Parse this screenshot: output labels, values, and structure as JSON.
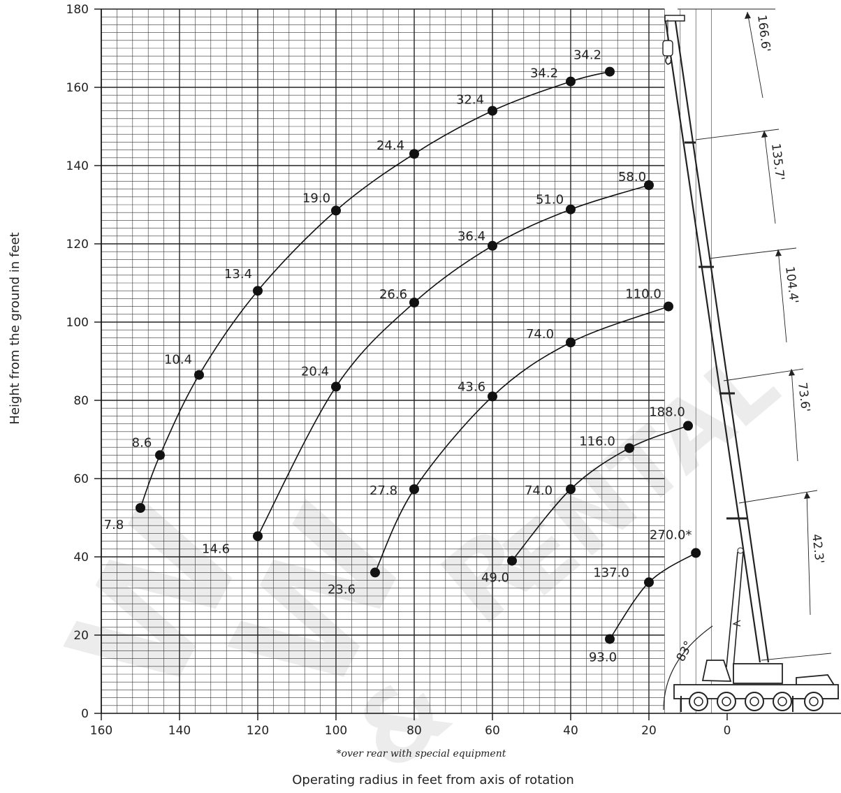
{
  "chart_data": {
    "type": "line",
    "xlabel": "Operating radius in feet from axis of rotation",
    "ylabel": "Height from the ground in feet",
    "xlim": [
      160,
      0
    ],
    "ylim": [
      0,
      180
    ],
    "x_ticks": [
      160,
      140,
      120,
      100,
      80,
      60,
      40,
      20,
      0
    ],
    "y_ticks": [
      0,
      20,
      40,
      60,
      80,
      100,
      120,
      140,
      160,
      180
    ],
    "grid": true,
    "footnote": "*over rear with special equipment",
    "boom_lengths": [
      "166.6'",
      "135.7'",
      "104.4'",
      "73.6'",
      "42.3'"
    ],
    "boom_angle": "83°",
    "watermark": [
      "W",
      "W",
      "R",
      "ENTAL",
      "&"
    ],
    "series": [
      {
        "points": [
          {
            "x": 30,
            "y": 164,
            "label": "34.2"
          },
          {
            "x": 40,
            "y": 161.5,
            "label": "34.2"
          },
          {
            "x": 60,
            "y": 154,
            "label": "32.4"
          },
          {
            "x": 80,
            "y": 143,
            "label": "24.4"
          },
          {
            "x": 100,
            "y": 128.5,
            "label": "19.0"
          },
          {
            "x": 120,
            "y": 108,
            "label": "13.4"
          },
          {
            "x": 135,
            "y": 86.5,
            "label": "10.4"
          },
          {
            "x": 145,
            "y": 66,
            "label": "8.6"
          },
          {
            "x": 150,
            "y": 52.5,
            "label": "7.8"
          }
        ]
      },
      {
        "points": [
          {
            "x": 20,
            "y": 135,
            "label": "58.0"
          },
          {
            "x": 40,
            "y": 128.8,
            "label": "51.0"
          },
          {
            "x": 60,
            "y": 119.5,
            "label": "36.4"
          },
          {
            "x": 80,
            "y": 105,
            "label": "26.6"
          },
          {
            "x": 100,
            "y": 83.5,
            "label": "20.4"
          },
          {
            "x": 120,
            "y": 45.3,
            "label": "14.6"
          }
        ]
      },
      {
        "points": [
          {
            "x": 15,
            "y": 104,
            "label": "110.0"
          },
          {
            "x": 40,
            "y": 94.8,
            "label": "74.0"
          },
          {
            "x": 60,
            "y": 81,
            "label": "43.6"
          },
          {
            "x": 80,
            "y": 57.3,
            "label": "27.8"
          },
          {
            "x": 90,
            "y": 36,
            "label": "23.6"
          }
        ]
      },
      {
        "points": [
          {
            "x": 10,
            "y": 73.5,
            "label": "188.0"
          },
          {
            "x": 25,
            "y": 67.8,
            "label": "116.0"
          },
          {
            "x": 40,
            "y": 57.3,
            "label": "74.0"
          },
          {
            "x": 55,
            "y": 39,
            "label": "49.0"
          }
        ]
      },
      {
        "points": [
          {
            "x": 8,
            "y": 41,
            "label": "270.0*"
          },
          {
            "x": 20,
            "y": 33.5,
            "label": "137.0"
          },
          {
            "x": 30,
            "y": 19,
            "label": "93.0"
          }
        ]
      }
    ]
  }
}
